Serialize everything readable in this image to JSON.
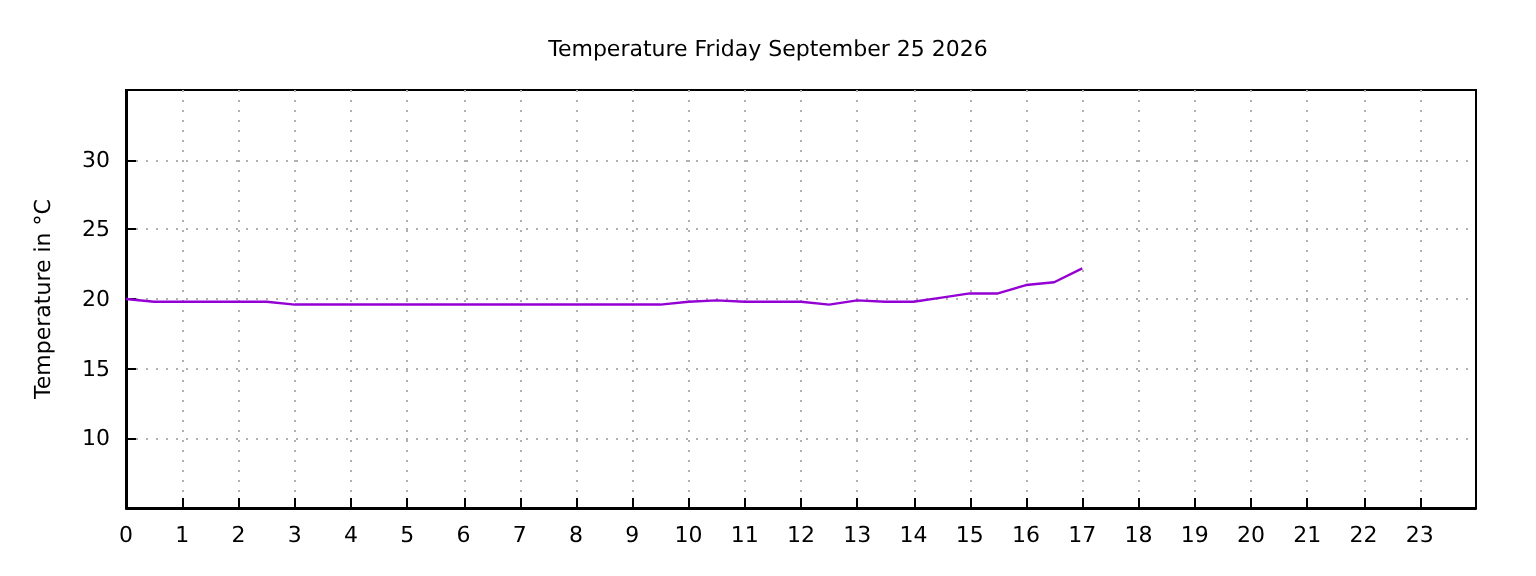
{
  "chart_data": {
    "type": "line",
    "title": "Temperature Friday September 25 2026",
    "ylabel": "Temperature in °C",
    "x": [
      0,
      0.5,
      1,
      1.5,
      2,
      2.5,
      3,
      3.5,
      4,
      4.5,
      5,
      5.5,
      6,
      6.5,
      7,
      7.5,
      8,
      8.5,
      9,
      9.5,
      10,
      10.5,
      11,
      11.5,
      12,
      12.5,
      13,
      13.5,
      14,
      14.5,
      15,
      15.5,
      16,
      16.5,
      17
    ],
    "series": [
      {
        "color": "#9400d3",
        "values": [
          20.0,
          19.8,
          19.8,
          19.8,
          19.8,
          19.8,
          19.6,
          19.6,
          19.6,
          19.6,
          19.6,
          19.6,
          19.6,
          19.6,
          19.6,
          19.6,
          19.6,
          19.6,
          19.6,
          19.6,
          19.8,
          19.9,
          19.8,
          19.8,
          19.8,
          19.6,
          19.9,
          19.8,
          19.8,
          20.1,
          20.4,
          20.4,
          21.0,
          21.2,
          22.2
        ]
      }
    ],
    "xlim": [
      0,
      24
    ],
    "xticks": [
      0,
      1,
      2,
      3,
      4,
      5,
      6,
      7,
      8,
      9,
      10,
      11,
      12,
      13,
      14,
      15,
      16,
      17,
      18,
      19,
      20,
      21,
      22,
      23
    ],
    "ylim": [
      5,
      35
    ],
    "yticks": [
      10,
      15,
      20,
      25,
      30
    ],
    "grid": true,
    "marker": "none",
    "line_style": "solid"
  }
}
